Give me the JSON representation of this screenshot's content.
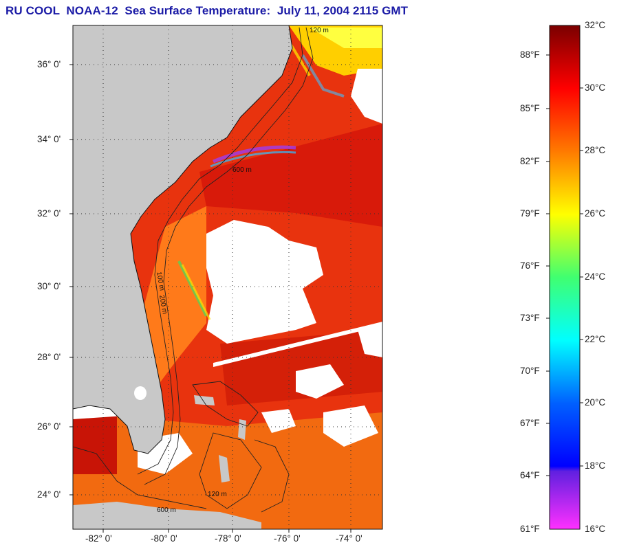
{
  "title": "RU COOL  NOAA-12  Sea Surface Temperature:  July 11, 2004 2115 GMT",
  "map": {
    "lat_labels": [
      "36° 0'",
      "34° 0'",
      "32° 0'",
      "30° 0'",
      "28° 0'",
      "26° 0'",
      "24° 0'"
    ],
    "lon_labels": [
      "-82° 0'",
      "-80° 0'",
      "-78° 0'",
      "-76° 0'",
      "-74° 0'"
    ],
    "contour_labels": [
      "120 m",
      "600 m",
      "100 m",
      "200 m"
    ],
    "colors": {
      "land": "#c8c8c8",
      "ocean_warm": "#e83a10",
      "cloud": "#ffffff"
    }
  },
  "colorbar": {
    "celsius": [
      "32°C",
      "30°C",
      "28°C",
      "26°C",
      "24°C",
      "22°C",
      "20°C",
      "18°C",
      "16°C"
    ],
    "fahrenheit": [
      "88°F",
      "85°F",
      "82°F",
      "79°F",
      "76°F",
      "73°F",
      "70°F",
      "67°F",
      "64°F",
      "61°F"
    ]
  }
}
